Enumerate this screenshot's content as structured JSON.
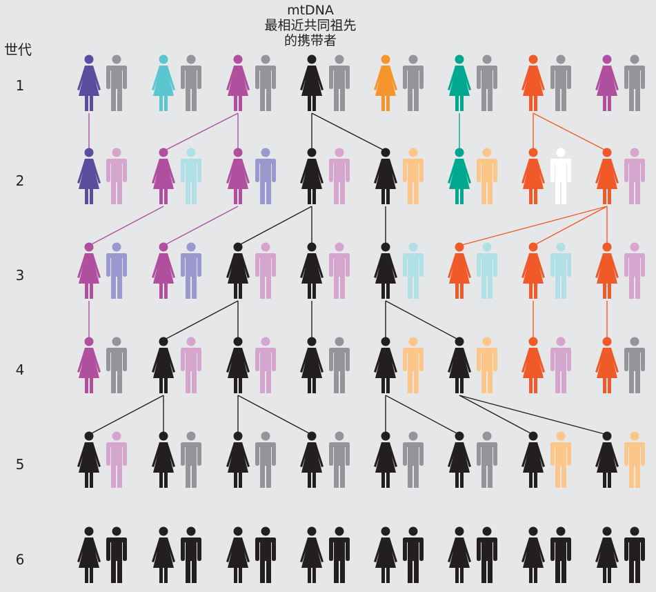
{
  "title": {
    "line1": "mtDNA",
    "line2": "最相近共同祖先",
    "line3": "的携带者"
  },
  "generation_header": "世代",
  "generations": [
    {
      "label": "1",
      "pairs": [
        {
          "female": "#5b4d9e",
          "male": "#939598"
        },
        {
          "female": "#5cc6d0",
          "male": "#939598"
        },
        {
          "female": "#b04f9e",
          "male": "#939598"
        },
        {
          "female": "#231f20",
          "male": "#939598"
        },
        {
          "female": "#f7952d",
          "male": "#939598"
        },
        {
          "female": "#00a88f",
          "male": "#939598"
        },
        {
          "female": "#f05a28",
          "male": "#939598"
        },
        {
          "female": "#b04f9e",
          "male": "#939598"
        }
      ]
    },
    {
      "label": "2",
      "pairs": [
        {
          "female": "#5b4d9e",
          "male": "#d6a5cd"
        },
        {
          "female": "#b04f9e",
          "male": "#b0e0e6"
        },
        {
          "female": "#b04f9e",
          "male": "#9b97cf"
        },
        {
          "female": "#231f20",
          "male": "#d6a5cd"
        },
        {
          "female": "#231f20",
          "male": "#fdc689"
        },
        {
          "female": "#00a88f",
          "male": "#fdc689"
        },
        {
          "female": "#f05a28",
          "male": "#ffffff"
        },
        {
          "female": "#f05a28",
          "male": "#d6a5cd"
        }
      ]
    },
    {
      "label": "3",
      "pairs": [
        {
          "female": "#b04f9e",
          "male": "#9b97cf"
        },
        {
          "female": "#b04f9e",
          "male": "#9b97cf"
        },
        {
          "female": "#231f20",
          "male": "#d6a5cd"
        },
        {
          "female": "#231f20",
          "male": "#d6a5cd"
        },
        {
          "female": "#231f20",
          "male": "#b0e0e6"
        },
        {
          "female": "#f05a28",
          "male": "#b0e0e6"
        },
        {
          "female": "#f05a28",
          "male": "#b0e0e6"
        },
        {
          "female": "#f05a28",
          "male": "#d6a5cd"
        }
      ]
    },
    {
      "label": "4",
      "pairs": [
        {
          "female": "#b04f9e",
          "male": "#939598"
        },
        {
          "female": "#231f20",
          "male": "#d6a5cd"
        },
        {
          "female": "#231f20",
          "male": "#d6a5cd"
        },
        {
          "female": "#231f20",
          "male": "#939598"
        },
        {
          "female": "#231f20",
          "male": "#fdc689"
        },
        {
          "female": "#231f20",
          "male": "#fdc689"
        },
        {
          "female": "#f05a28",
          "male": "#d6a5cd"
        },
        {
          "female": "#f05a28",
          "male": "#939598"
        }
      ]
    },
    {
      "label": "5",
      "pairs": [
        {
          "female": "#231f20",
          "male": "#d6a5cd"
        },
        {
          "female": "#231f20",
          "male": "#939598"
        },
        {
          "female": "#231f20",
          "male": "#939598"
        },
        {
          "female": "#231f20",
          "male": "#939598"
        },
        {
          "female": "#231f20",
          "male": "#939598"
        },
        {
          "female": "#231f20",
          "male": "#939598"
        },
        {
          "female": "#231f20",
          "male": "#fdc689"
        },
        {
          "female": "#231f20",
          "male": "#fdc689"
        }
      ]
    },
    {
      "label": "6",
      "pairs": [
        {
          "female": "#231f20",
          "male": "#231f20"
        },
        {
          "female": "#231f20",
          "male": "#231f20"
        },
        {
          "female": "#231f20",
          "male": "#231f20"
        },
        {
          "female": "#231f20",
          "male": "#231f20"
        },
        {
          "female": "#231f20",
          "male": "#231f20"
        },
        {
          "female": "#231f20",
          "male": "#231f20"
        },
        {
          "female": "#231f20",
          "male": "#231f20"
        },
        {
          "female": "#231f20",
          "male": "#231f20"
        }
      ]
    }
  ],
  "lineage_links": [
    {
      "from": [
        1,
        0
      ],
      "to": [
        2,
        0
      ],
      "color": "#b04f9e"
    },
    {
      "from": [
        1,
        2
      ],
      "to": [
        2,
        1
      ],
      "color": "#b04f9e"
    },
    {
      "from": [
        1,
        2
      ],
      "to": [
        2,
        2
      ],
      "color": "#b04f9e"
    },
    {
      "from": [
        1,
        3
      ],
      "to": [
        2,
        3
      ],
      "color": "#231f20"
    },
    {
      "from": [
        1,
        3
      ],
      "to": [
        2,
        4
      ],
      "color": "#231f20"
    },
    {
      "from": [
        1,
        5
      ],
      "to": [
        2,
        5
      ],
      "color": "#00a88f"
    },
    {
      "from": [
        1,
        6
      ],
      "to": [
        2,
        6
      ],
      "color": "#f05a28"
    },
    {
      "from": [
        1,
        6
      ],
      "to": [
        2,
        7
      ],
      "color": "#f05a28"
    },
    {
      "from": [
        2,
        1
      ],
      "to": [
        3,
        0
      ],
      "color": "#b04f9e"
    },
    {
      "from": [
        2,
        2
      ],
      "to": [
        3,
        1
      ],
      "color": "#b04f9e"
    },
    {
      "from": [
        2,
        3
      ],
      "to": [
        3,
        2
      ],
      "color": "#231f20"
    },
    {
      "from": [
        2,
        3
      ],
      "to": [
        3,
        3
      ],
      "color": "#231f20"
    },
    {
      "from": [
        2,
        4
      ],
      "to": [
        3,
        4
      ],
      "color": "#231f20"
    },
    {
      "from": [
        2,
        7
      ],
      "to": [
        3,
        5
      ],
      "color": "#f05a28"
    },
    {
      "from": [
        2,
        7
      ],
      "to": [
        3,
        6
      ],
      "color": "#f05a28"
    },
    {
      "from": [
        2,
        7
      ],
      "to": [
        3,
        7
      ],
      "color": "#f05a28"
    },
    {
      "from": [
        3,
        0
      ],
      "to": [
        4,
        0
      ],
      "color": "#b04f9e"
    },
    {
      "from": [
        3,
        2
      ],
      "to": [
        4,
        1
      ],
      "color": "#231f20"
    },
    {
      "from": [
        3,
        2
      ],
      "to": [
        4,
        2
      ],
      "color": "#231f20"
    },
    {
      "from": [
        3,
        3
      ],
      "to": [
        4,
        3
      ],
      "color": "#231f20"
    },
    {
      "from": [
        3,
        4
      ],
      "to": [
        4,
        4
      ],
      "color": "#231f20"
    },
    {
      "from": [
        3,
        4
      ],
      "to": [
        4,
        5
      ],
      "color": "#231f20"
    },
    {
      "from": [
        3,
        6
      ],
      "to": [
        4,
        6
      ],
      "color": "#f05a28"
    },
    {
      "from": [
        3,
        7
      ],
      "to": [
        4,
        7
      ],
      "color": "#f05a28"
    },
    {
      "from": [
        4,
        1
      ],
      "to": [
        5,
        0
      ],
      "color": "#231f20"
    },
    {
      "from": [
        4,
        1
      ],
      "to": [
        5,
        1
      ],
      "color": "#231f20"
    },
    {
      "from": [
        4,
        2
      ],
      "to": [
        5,
        2
      ],
      "color": "#231f20"
    },
    {
      "from": [
        4,
        2
      ],
      "to": [
        5,
        3
      ],
      "color": "#231f20"
    },
    {
      "from": [
        4,
        4
      ],
      "to": [
        5,
        4
      ],
      "color": "#231f20"
    },
    {
      "from": [
        4,
        4
      ],
      "to": [
        5,
        5
      ],
      "color": "#231f20"
    },
    {
      "from": [
        4,
        5
      ],
      "to": [
        5,
        6
      ],
      "color": "#231f20"
    },
    {
      "from": [
        4,
        5
      ],
      "to": [
        5,
        7
      ],
      "color": "#231f20"
    }
  ]
}
